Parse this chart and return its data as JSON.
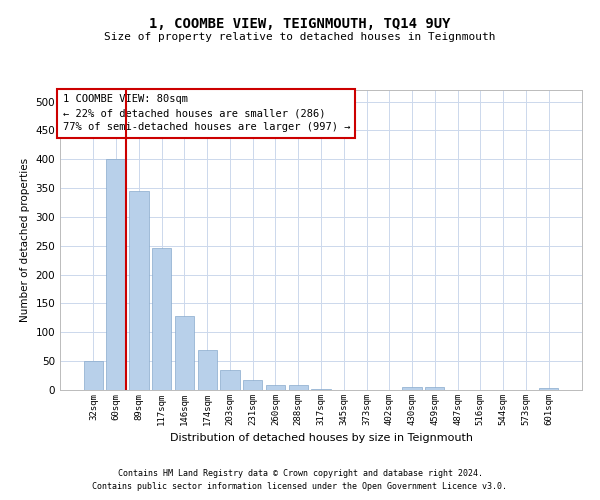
{
  "title": "1, COOMBE VIEW, TEIGNMOUTH, TQ14 9UY",
  "subtitle": "Size of property relative to detached houses in Teignmouth",
  "xlabel": "Distribution of detached houses by size in Teignmouth",
  "ylabel": "Number of detached properties",
  "categories": [
    "32sqm",
    "60sqm",
    "89sqm",
    "117sqm",
    "146sqm",
    "174sqm",
    "203sqm",
    "231sqm",
    "260sqm",
    "288sqm",
    "317sqm",
    "345sqm",
    "373sqm",
    "402sqm",
    "430sqm",
    "459sqm",
    "487sqm",
    "516sqm",
    "544sqm",
    "573sqm",
    "601sqm"
  ],
  "values": [
    50,
    400,
    345,
    246,
    128,
    70,
    35,
    18,
    8,
    8,
    1,
    0,
    0,
    0,
    5,
    5,
    0,
    0,
    0,
    0,
    3
  ],
  "bar_color": "#b8d0ea",
  "bar_edge_color": "#88aacc",
  "marker_bar_index": 1,
  "marker_color": "#cc0000",
  "annotation_text": "1 COOMBE VIEW: 80sqm\n← 22% of detached houses are smaller (286)\n77% of semi-detached houses are larger (997) →",
  "annotation_box_color": "#ffffff",
  "annotation_box_edge": "#cc0000",
  "footer_line1": "Contains HM Land Registry data © Crown copyright and database right 2024.",
  "footer_line2": "Contains public sector information licensed under the Open Government Licence v3.0.",
  "background_color": "#ffffff",
  "grid_color": "#ccd8ec",
  "ylim": [
    0,
    520
  ],
  "yticks": [
    0,
    50,
    100,
    150,
    200,
    250,
    300,
    350,
    400,
    450,
    500
  ]
}
